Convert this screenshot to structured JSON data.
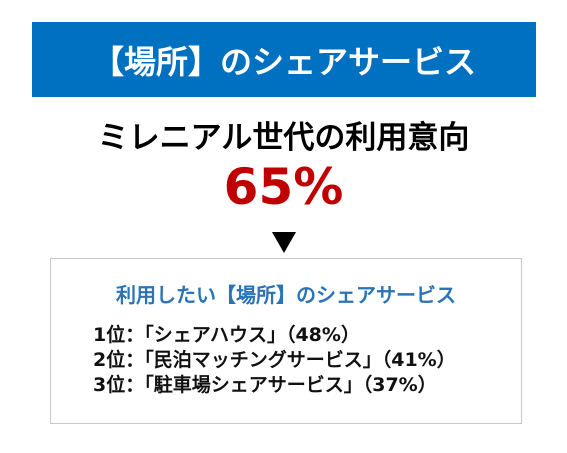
{
  "header": {
    "title": "【場所】のシェアサービス"
  },
  "subtitle": "ミレニアル世代の利用意向",
  "highlight": "65%",
  "box": {
    "heading": "利用したい【場所】のシェアサービス",
    "items": [
      "1位：「シェアハウス」（48%）",
      "2位：「民泊マッチングサービス」（41%）",
      "3位：「駐車場シェアサービス」（37%）"
    ]
  }
}
